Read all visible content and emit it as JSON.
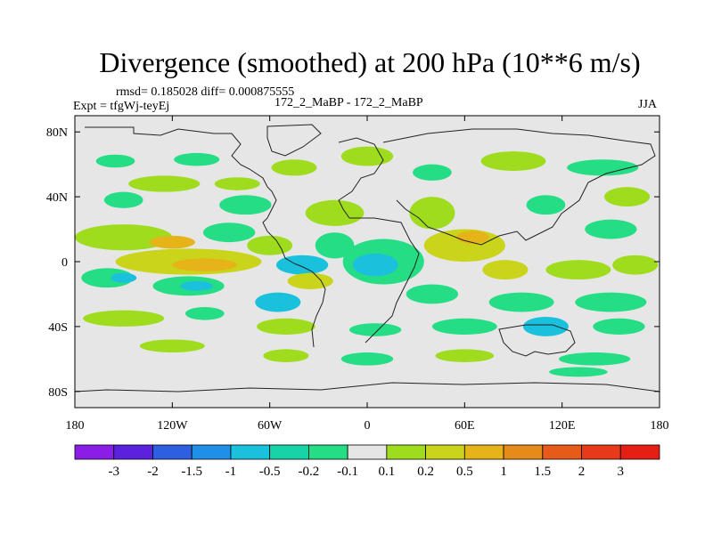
{
  "header": {
    "title": "Divergence (smoothed) at 200 hPa (10**6 m/s)",
    "rmsd_line": "rmsd= 0.185028 diff= 0.000875555",
    "expt_line": "Expt = tfgWj-teyEj",
    "comparison": "172_2_MaBP - 172_2_MaBP",
    "season": "JJA"
  },
  "chart_data": {
    "type": "heatmap",
    "title": "Divergence (smoothed) at 200 hPa (10**6 m/s)",
    "x_ticks": [
      {
        "value": -180,
        "label": "180"
      },
      {
        "value": -120,
        "label": "120W"
      },
      {
        "value": -60,
        "label": "60W"
      },
      {
        "value": 0,
        "label": "0"
      },
      {
        "value": 60,
        "label": "60E"
      },
      {
        "value": 120,
        "label": "120E"
      },
      {
        "value": 180,
        "label": "180"
      }
    ],
    "y_ticks": [
      {
        "value": 80,
        "label": "80N"
      },
      {
        "value": 40,
        "label": "40N"
      },
      {
        "value": 0,
        "label": "0"
      },
      {
        "value": -40,
        "label": "40S"
      },
      {
        "value": -80,
        "label": "80S"
      }
    ],
    "xlim": [
      -180,
      180
    ],
    "ylim": [
      -90,
      90
    ],
    "colorbar": {
      "labels": [
        "-3",
        "-2",
        "-1.5",
        "-1",
        "-0.5",
        "-0.2",
        "-0.1",
        "0.1",
        "0.2",
        "0.5",
        "1",
        "1.5",
        "2",
        "3"
      ],
      "colors": [
        "#8a1de6",
        "#5a22dd",
        "#2e5fe0",
        "#1f8fe8",
        "#19c1dc",
        "#19d3a8",
        "#24dd85",
        "#e6e6e6",
        "#9fdc1d",
        "#c9d41a",
        "#e6b418",
        "#e68a1a",
        "#e65a1a",
        "#e63a1a",
        "#e61e14"
      ]
    },
    "blobs": [
      {
        "lon": -155,
        "lat": 62,
        "rx": 12,
        "ry": 4,
        "color": "#24dd85"
      },
      {
        "lon": -105,
        "lat": 63,
        "rx": 14,
        "ry": 4,
        "color": "#24dd85"
      },
      {
        "lon": -125,
        "lat": 48,
        "rx": 22,
        "ry": 5,
        "color": "#9fdc1d"
      },
      {
        "lon": -80,
        "lat": 48,
        "rx": 14,
        "ry": 4,
        "color": "#9fdc1d"
      },
      {
        "lon": -45,
        "lat": 58,
        "rx": 14,
        "ry": 5,
        "color": "#9fdc1d"
      },
      {
        "lon": 0,
        "lat": 65,
        "rx": 16,
        "ry": 6,
        "color": "#9fdc1d"
      },
      {
        "lon": 40,
        "lat": 55,
        "rx": 12,
        "ry": 5,
        "color": "#24dd85"
      },
      {
        "lon": 90,
        "lat": 62,
        "rx": 20,
        "ry": 6,
        "color": "#9fdc1d"
      },
      {
        "lon": 145,
        "lat": 58,
        "rx": 22,
        "ry": 5,
        "color": "#24dd85"
      },
      {
        "lon": 160,
        "lat": 40,
        "rx": 14,
        "ry": 6,
        "color": "#9fdc1d"
      },
      {
        "lon": -150,
        "lat": 38,
        "rx": 12,
        "ry": 5,
        "color": "#24dd85"
      },
      {
        "lon": -75,
        "lat": 35,
        "rx": 16,
        "ry": 6,
        "color": "#24dd85"
      },
      {
        "lon": -20,
        "lat": 30,
        "rx": 18,
        "ry": 8,
        "color": "#9fdc1d"
      },
      {
        "lon": 40,
        "lat": 30,
        "rx": 14,
        "ry": 10,
        "color": "#9fdc1d"
      },
      {
        "lon": 110,
        "lat": 35,
        "rx": 12,
        "ry": 6,
        "color": "#24dd85"
      },
      {
        "lon": 150,
        "lat": 20,
        "rx": 16,
        "ry": 6,
        "color": "#24dd85"
      },
      {
        "lon": -150,
        "lat": 15,
        "rx": 30,
        "ry": 8,
        "color": "#9fdc1d"
      },
      {
        "lon": -120,
        "lat": 12,
        "rx": 14,
        "ry": 4,
        "color": "#e6b418"
      },
      {
        "lon": -85,
        "lat": 18,
        "rx": 16,
        "ry": 6,
        "color": "#24dd85"
      },
      {
        "lon": -60,
        "lat": 10,
        "rx": 14,
        "ry": 6,
        "color": "#9fdc1d"
      },
      {
        "lon": -110,
        "lat": 0,
        "rx": 45,
        "ry": 8,
        "color": "#c9d41a"
      },
      {
        "lon": -100,
        "lat": -2,
        "rx": 20,
        "ry": 4,
        "color": "#e6b418"
      },
      {
        "lon": -40,
        "lat": -2,
        "rx": 16,
        "ry": 6,
        "color": "#19c1dc"
      },
      {
        "lon": -20,
        "lat": 10,
        "rx": 12,
        "ry": 8,
        "color": "#24dd85"
      },
      {
        "lon": -35,
        "lat": -12,
        "rx": 14,
        "ry": 5,
        "color": "#c9d41a"
      },
      {
        "lon": 10,
        "lat": 0,
        "rx": 25,
        "ry": 14,
        "color": "#24dd85"
      },
      {
        "lon": 5,
        "lat": -2,
        "rx": 14,
        "ry": 7,
        "color": "#19c1dc"
      },
      {
        "lon": 60,
        "lat": 10,
        "rx": 25,
        "ry": 10,
        "color": "#c9d41a"
      },
      {
        "lon": 65,
        "lat": 15,
        "rx": 10,
        "ry": 4,
        "color": "#e6b418"
      },
      {
        "lon": 85,
        "lat": -5,
        "rx": 14,
        "ry": 6,
        "color": "#c9d41a"
      },
      {
        "lon": 130,
        "lat": -5,
        "rx": 20,
        "ry": 6,
        "color": "#9fdc1d"
      },
      {
        "lon": 165,
        "lat": -2,
        "rx": 14,
        "ry": 6,
        "color": "#9fdc1d"
      },
      {
        "lon": -160,
        "lat": -10,
        "rx": 16,
        "ry": 6,
        "color": "#24dd85"
      },
      {
        "lon": -150,
        "lat": -10,
        "rx": 8,
        "ry": 3,
        "color": "#19c1dc"
      },
      {
        "lon": -110,
        "lat": -15,
        "rx": 22,
        "ry": 6,
        "color": "#24dd85"
      },
      {
        "lon": -105,
        "lat": -15,
        "rx": 10,
        "ry": 3,
        "color": "#19c1dc"
      },
      {
        "lon": -55,
        "lat": -25,
        "rx": 14,
        "ry": 6,
        "color": "#19c1dc"
      },
      {
        "lon": 40,
        "lat": -20,
        "rx": 16,
        "ry": 6,
        "color": "#24dd85"
      },
      {
        "lon": 95,
        "lat": -25,
        "rx": 20,
        "ry": 6,
        "color": "#24dd85"
      },
      {
        "lon": 150,
        "lat": -25,
        "rx": 22,
        "ry": 6,
        "color": "#24dd85"
      },
      {
        "lon": -150,
        "lat": -35,
        "rx": 25,
        "ry": 5,
        "color": "#9fdc1d"
      },
      {
        "lon": -100,
        "lat": -32,
        "rx": 12,
        "ry": 4,
        "color": "#24dd85"
      },
      {
        "lon": -50,
        "lat": -40,
        "rx": 18,
        "ry": 5,
        "color": "#9fdc1d"
      },
      {
        "lon": 5,
        "lat": -42,
        "rx": 16,
        "ry": 4,
        "color": "#24dd85"
      },
      {
        "lon": 60,
        "lat": -40,
        "rx": 20,
        "ry": 5,
        "color": "#24dd85"
      },
      {
        "lon": 110,
        "lat": -40,
        "rx": 14,
        "ry": 6,
        "color": "#19c1dc"
      },
      {
        "lon": 155,
        "lat": -40,
        "rx": 16,
        "ry": 5,
        "color": "#24dd85"
      },
      {
        "lon": -120,
        "lat": -52,
        "rx": 20,
        "ry": 4,
        "color": "#9fdc1d"
      },
      {
        "lon": -50,
        "lat": -58,
        "rx": 14,
        "ry": 4,
        "color": "#9fdc1d"
      },
      {
        "lon": 0,
        "lat": -60,
        "rx": 16,
        "ry": 4,
        "color": "#24dd85"
      },
      {
        "lon": 60,
        "lat": -58,
        "rx": 18,
        "ry": 4,
        "color": "#9fdc1d"
      },
      {
        "lon": 140,
        "lat": -60,
        "rx": 22,
        "ry": 4,
        "color": "#24dd85"
      },
      {
        "lon": 130,
        "lat": -68,
        "rx": 18,
        "ry": 3,
        "color": "#24dd85"
      }
    ]
  }
}
